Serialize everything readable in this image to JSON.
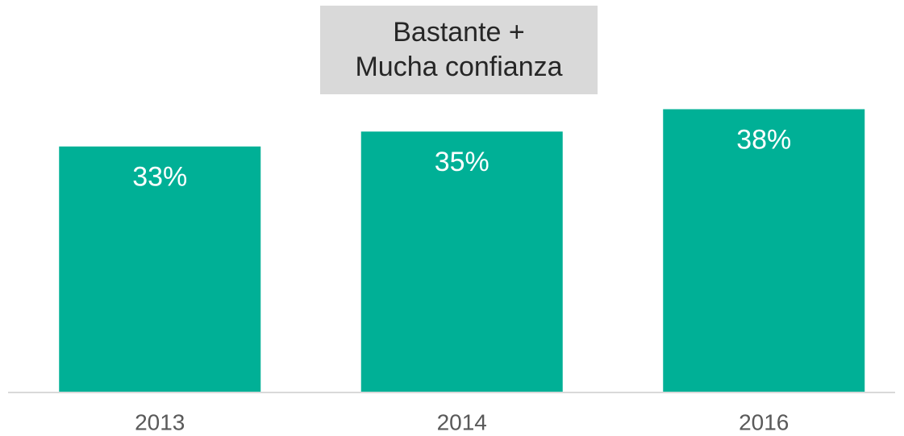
{
  "chart_data": {
    "type": "bar",
    "title": "Bastante +\nMucha confianza",
    "categories": [
      "2013",
      "2014",
      "2016"
    ],
    "values": [
      33,
      35,
      38
    ],
    "value_labels": [
      "33%",
      "35%",
      "38%"
    ],
    "color": "#00b096"
  }
}
